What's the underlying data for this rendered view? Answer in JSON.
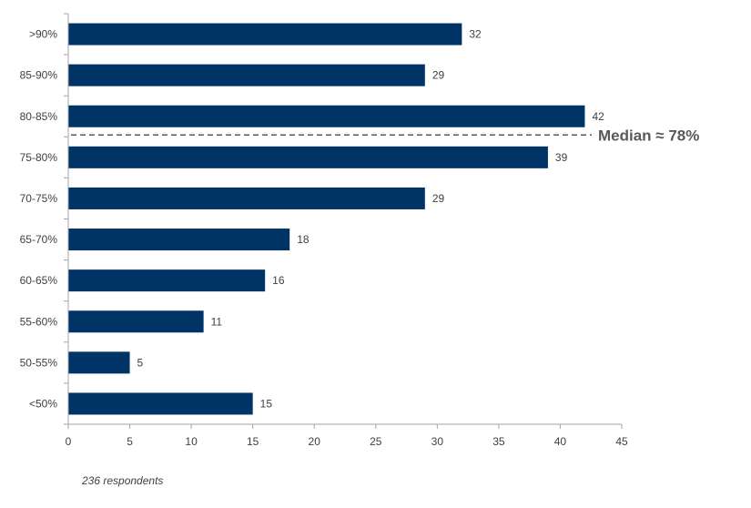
{
  "chart_data": {
    "type": "bar",
    "orientation": "horizontal",
    "categories": [
      ">90%",
      "85-90%",
      "80-85%",
      "75-80%",
      "70-75%",
      "65-70%",
      "60-65%",
      "55-60%",
      "50-55%",
      "<50%"
    ],
    "values": [
      32,
      29,
      42,
      39,
      29,
      18,
      16,
      11,
      5,
      15
    ],
    "xlim": [
      0,
      45
    ],
    "xticks": [
      0,
      5,
      10,
      15,
      20,
      25,
      30,
      35,
      40,
      45
    ],
    "grid": false,
    "bar_color": "#003366",
    "annotation": {
      "text": "Median ≈ 78%",
      "style": "dashed-line",
      "color": "#595959"
    }
  },
  "footnote": "236 respondents"
}
